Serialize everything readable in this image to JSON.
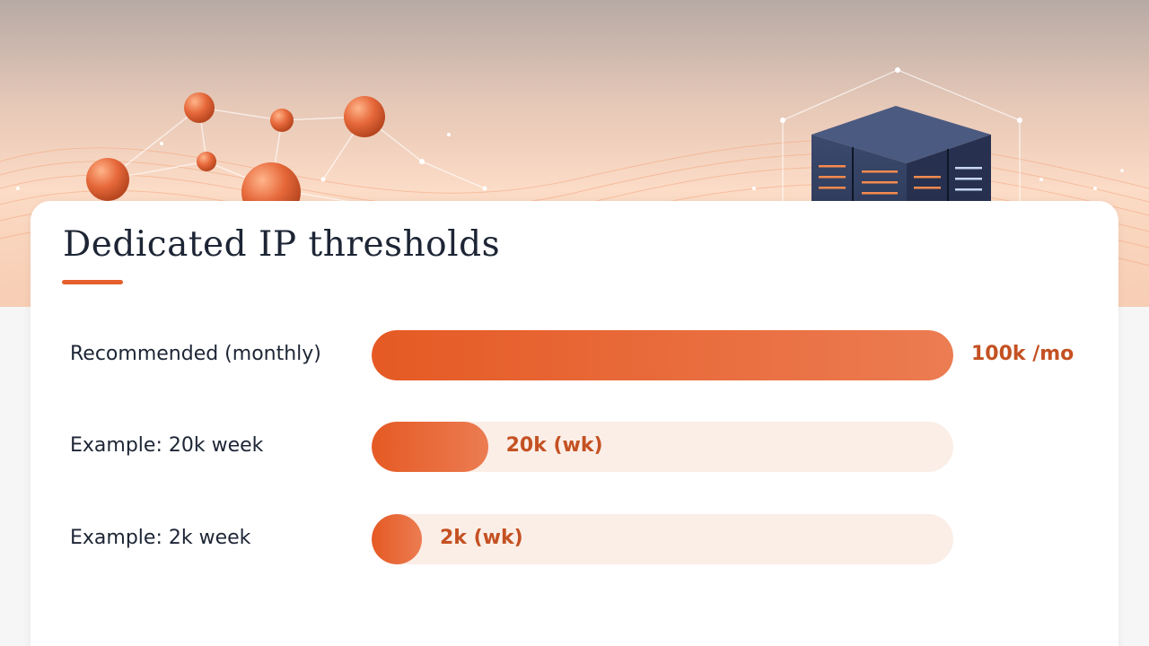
{
  "colors": {
    "accent": "#e5602d",
    "bar_fill_start": "#e55a24",
    "bar_fill_end": "#ec7c52",
    "track": "#fbeee7",
    "value_text": "#c45122",
    "title_text": "#1d2535"
  },
  "hero": {
    "icons": [
      "network-nodes-icon",
      "server-rack-icon"
    ]
  },
  "chart_data": {
    "type": "bar",
    "orientation": "horizontal",
    "title": "Dedicated IP thresholds",
    "xlabel": "",
    "ylabel": "",
    "grid": false,
    "xlim": [
      0,
      100000
    ],
    "categories": [
      "Recommended (monthly)",
      "Example: 20k week",
      "Example: 2k week"
    ],
    "values": [
      100000,
      20000,
      2000
    ],
    "value_labels": [
      "100k /mo",
      "20k (wk)",
      "2k (wk)"
    ]
  }
}
